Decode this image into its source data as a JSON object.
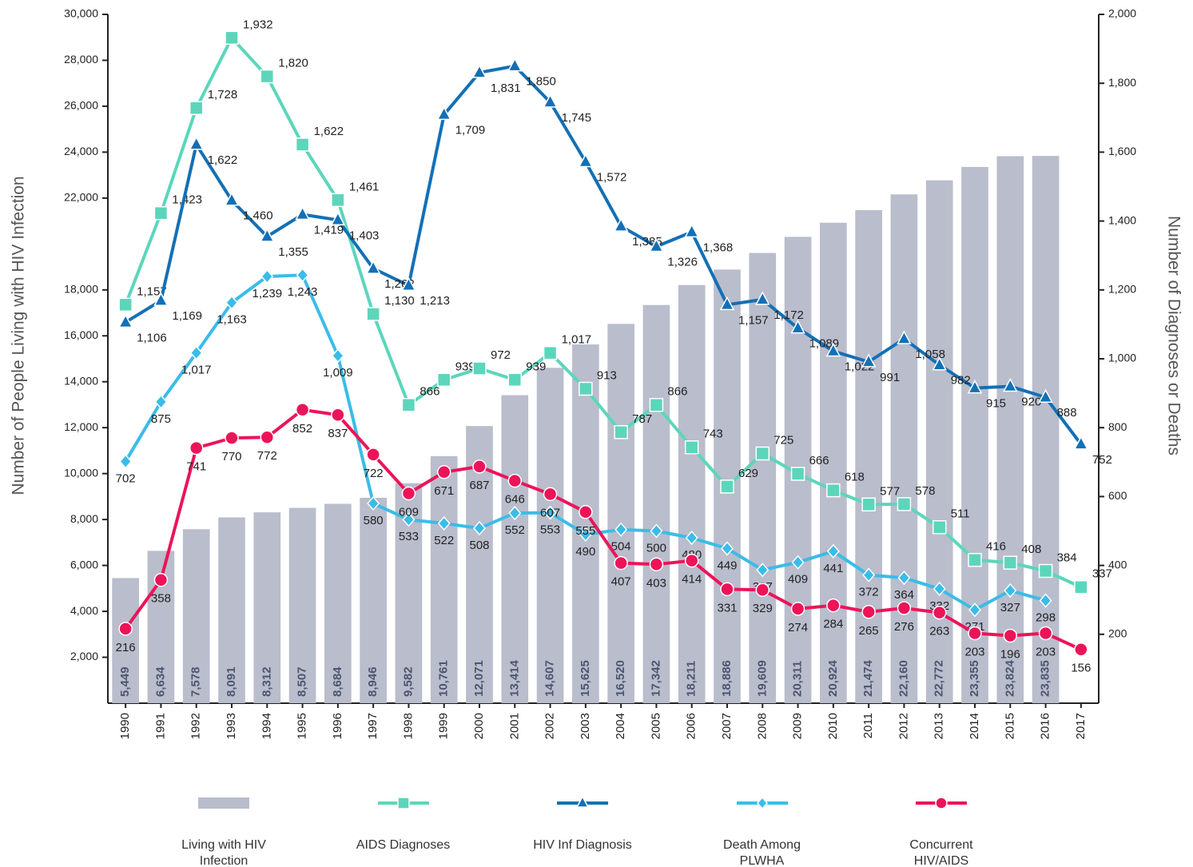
{
  "chart_data": {
    "type": "combo",
    "y_label": "Number of People Living with HIV Infection",
    "y2_label": "Number of Diagnoses or Deaths",
    "categories": [
      "1990",
      "1991",
      "1992",
      "1993",
      "1994",
      "1995",
      "1996",
      "1997",
      "1998",
      "1999",
      "2000",
      "2001",
      "2002",
      "2003",
      "2004",
      "2005",
      "2006",
      "2007",
      "2008",
      "2009",
      "2010",
      "2011",
      "2012",
      "2013",
      "2014",
      "2015",
      "2016",
      "2017"
    ],
    "ylim": [
      0,
      30000
    ],
    "yticks": [
      {
        "value": 2000,
        "label": "2,000"
      },
      {
        "value": 4000,
        "label": "4,000"
      },
      {
        "value": 6000,
        "label": "6,000"
      },
      {
        "value": 8000,
        "label": "8,000"
      },
      {
        "value": 10000,
        "label": "10,000"
      },
      {
        "value": 12000,
        "label": "12,000"
      },
      {
        "value": 14000,
        "label": "14,000"
      },
      {
        "value": 16000,
        "label": "16,000"
      },
      {
        "value": 18000,
        "label": "18,000"
      },
      {
        "value": 22000,
        "label": "22,000"
      },
      {
        "value": 24000,
        "label": "24,000"
      },
      {
        "value": 26000,
        "label": "26,000"
      },
      {
        "value": 28000,
        "label": "28,000"
      },
      {
        "value": 30000,
        "label": "30,000"
      }
    ],
    "y2lim": [
      0,
      2000
    ],
    "y2ticks": [
      200,
      400,
      600,
      800,
      {
        "value": 1000,
        "label": "1,000"
      },
      {
        "value": 1200,
        "label": "1,200"
      },
      {
        "value": 1400,
        "label": "1,400"
      },
      {
        "value": 1600,
        "label": "1,600"
      },
      {
        "value": 1800,
        "label": "1,800"
      },
      {
        "value": 2000,
        "label": "2,000"
      }
    ],
    "series": [
      {
        "name": "Living with HIV Infection",
        "type": "bar",
        "color": "#b9bdcc",
        "values": [
          5449,
          6634,
          7578,
          8091,
          8312,
          8507,
          8684,
          8946,
          9582,
          10761,
          12071,
          13414,
          14607,
          15625,
          16520,
          17342,
          18211,
          18886,
          19609,
          20311,
          20924,
          21474,
          22160,
          22772,
          23355,
          23824,
          23835,
          null
        ],
        "value_labels": [
          "5,449",
          "6,634",
          "7,578",
          "8,091",
          "8,312",
          "8,507",
          "8,684",
          "8,946",
          "9,582",
          "10,761",
          "12,071",
          "13,414",
          "14,607",
          "15,625",
          "16,520",
          "17,342",
          "18,211",
          "18,886",
          "19,609",
          "20,311",
          "20,924",
          "21,474",
          "22,160",
          "22,772",
          "23,355",
          "23,824",
          "23,835",
          null
        ]
      },
      {
        "name": "AIDS Diagnoses",
        "type": "line",
        "axis": "y2",
        "marker": "square",
        "color": "#5cd6bb",
        "values": [
          1157,
          1423,
          1728,
          1932,
          1820,
          1622,
          1461,
          1130,
          866,
          939,
          972,
          939,
          1017,
          913,
          787,
          866,
          743,
          629,
          725,
          666,
          618,
          577,
          578,
          511,
          416,
          408,
          384,
          337
        ],
        "value_labels": [
          "1,157",
          "1,423",
          "1,728",
          "1,932",
          "1,820",
          "1,622",
          "1,461",
          "1,130",
          "866",
          "939",
          "972",
          "939",
          "1,017",
          "913",
          "787",
          "866",
          "743",
          "629",
          "725",
          "666",
          "618",
          "577",
          "578",
          "511",
          "416",
          "408",
          "384",
          "337"
        ]
      },
      {
        "name": "HIV Inf Diagnosis",
        "type": "line",
        "axis": "y2",
        "marker": "triangle",
        "color": "#1370b6",
        "values": [
          1106,
          1169,
          1622,
          1460,
          1355,
          1419,
          1403,
          1262,
          1213,
          1709,
          1831,
          1850,
          1745,
          1572,
          1385,
          1326,
          1368,
          1157,
          1172,
          1089,
          1022,
          991,
          1058,
          982,
          915,
          920,
          888,
          752
        ],
        "value_labels": [
          "1,106",
          "1,169",
          "1,622",
          "1,460",
          "1,355",
          "1,419",
          "1,403",
          "1,262",
          "1,213",
          "1,709",
          "1,831",
          "1,850",
          "1,745",
          "1,572",
          "1,385",
          "1,326",
          "1,368",
          "1,157",
          "1,172",
          "1,089",
          "1,022",
          "991",
          "1,058",
          "982",
          "915",
          "920",
          "888",
          "752"
        ]
      },
      {
        "name": "Death Among PLWHA",
        "type": "line",
        "axis": "y2",
        "marker": "diamond",
        "color": "#3bbce8",
        "values": [
          702,
          875,
          1017,
          1163,
          1239,
          1243,
          1009,
          580,
          533,
          522,
          508,
          552,
          553,
          490,
          504,
          500,
          480,
          449,
          387,
          409,
          441,
          372,
          364,
          332,
          271,
          327,
          298,
          null
        ],
        "value_labels": [
          "702",
          "875",
          "1,017",
          "1,163",
          "1,239",
          "1,243",
          "1,009",
          "580",
          "533",
          "522",
          "508",
          "552",
          "553",
          "490",
          "504",
          "500",
          "480",
          "449",
          "387",
          "409",
          "441",
          "372",
          "364",
          "332",
          "271",
          "327",
          "298",
          null
        ]
      },
      {
        "name": "Concurrent HIV/AIDS Diagnosis",
        "type": "line",
        "axis": "y2",
        "marker": "circle",
        "color": "#ec1459",
        "values": [
          216,
          358,
          741,
          770,
          772,
          852,
          837,
          722,
          609,
          671,
          687,
          646,
          607,
          555,
          407,
          403,
          414,
          331,
          329,
          274,
          284,
          265,
          276,
          263,
          203,
          196,
          203,
          156
        ],
        "value_labels": [
          "216",
          "358",
          "741",
          "770",
          "772",
          "852",
          "837",
          "722",
          "609",
          "671",
          "687",
          "646",
          "607",
          "555",
          "407",
          "403",
          "414",
          "331",
          "329",
          "274",
          "284",
          "265",
          "276",
          "263",
          "203",
          "196",
          "203",
          "156"
        ]
      }
    ]
  }
}
